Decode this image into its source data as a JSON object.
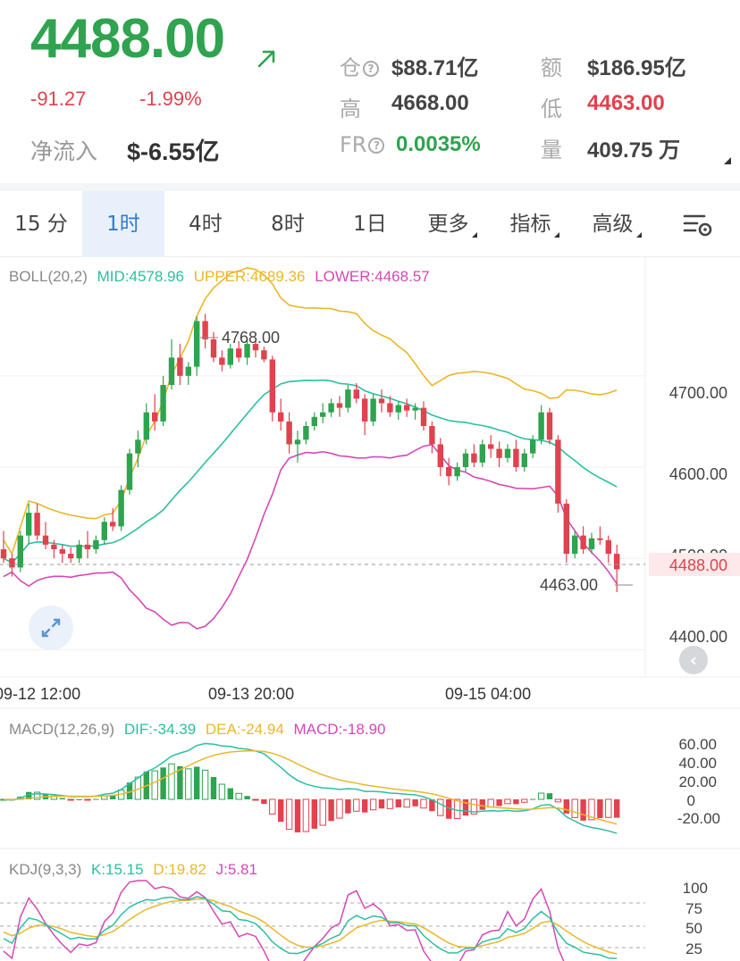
{
  "header": {
    "price": "4488.00",
    "change": "-91.27",
    "change_pct": "-1.99%",
    "inflow_label": "净流入",
    "inflow_value": "$-6.55亿",
    "stats": {
      "oi_label": "仓",
      "oi_value": "$88.71亿",
      "amount_label": "额",
      "amount_value": "$186.95亿",
      "high_label": "高",
      "high_value": "4668.00",
      "low_label": "低",
      "low_value": "4463.00",
      "fr_label": "FR",
      "fr_value": "0.0035%",
      "vol_label": "量",
      "vol_value": "409.75 万"
    }
  },
  "tabs": [
    "15 分",
    "1时",
    "4时",
    "8时",
    "1日",
    "更多",
    "指标",
    "高级"
  ],
  "active_tab": "1时",
  "colors": {
    "up": "#2fa34f",
    "down": "#e0424e",
    "mid": "#2bbfa0",
    "upper": "#eab72a",
    "lower": "#d548b6",
    "accent": "#2f7bd5"
  },
  "boll": {
    "label": "BOLL(20,2)",
    "mid": "MID:4578.96",
    "upper": "UPPER:4689.36",
    "lower": "LOWER:4468.57"
  },
  "price_axis": [
    "4700.00",
    "4600.00",
    "4500.00",
    "4400.00"
  ],
  "current_tag": "4488.00",
  "hi_marker": "4768.00",
  "lo_marker": "4463.00",
  "time_axis": [
    "09-12 12:00",
    "09-13 20:00",
    "09-15 04:00"
  ],
  "macd": {
    "label": "MACD(12,26,9)",
    "dif": "DIF:-34.39",
    "dea": "DEA:-24.94",
    "macd": "MACD:-18.90",
    "axis": [
      "60.00",
      "40.00",
      "20.00",
      "0",
      "-20.00"
    ]
  },
  "kdj": {
    "label": "KDJ(9,3,3)",
    "k": "K:15.15",
    "d": "D:19.82",
    "j": "J:5.81",
    "axis": [
      "100",
      "75",
      "50",
      "25"
    ]
  },
  "chart_data": {
    "type": "candlestick",
    "interval": "1h",
    "candles": [
      [
        4510,
        4530,
        4495,
        4500
      ],
      [
        4500,
        4505,
        4480,
        4490
      ],
      [
        4490,
        4530,
        4485,
        4525
      ],
      [
        4525,
        4560,
        4515,
        4550
      ],
      [
        4550,
        4560,
        4520,
        4525
      ],
      [
        4525,
        4540,
        4510,
        4515
      ],
      [
        4515,
        4520,
        4500,
        4510
      ],
      [
        4510,
        4515,
        4495,
        4505
      ],
      [
        4505,
        4512,
        4495,
        4500
      ],
      [
        4500,
        4520,
        4495,
        4515
      ],
      [
        4515,
        4530,
        4500,
        4510
      ],
      [
        4510,
        4525,
        4505,
        4520
      ],
      [
        4520,
        4545,
        4515,
        4540
      ],
      [
        4540,
        4555,
        4530,
        4535
      ],
      [
        4535,
        4580,
        4530,
        4575
      ],
      [
        4575,
        4620,
        4570,
        4615
      ],
      [
        4615,
        4640,
        4600,
        4630
      ],
      [
        4630,
        4670,
        4625,
        4660
      ],
      [
        4660,
        4680,
        4640,
        4650
      ],
      [
        4650,
        4700,
        4645,
        4690
      ],
      [
        4690,
        4740,
        4685,
        4720
      ],
      [
        4720,
        4735,
        4690,
        4700
      ],
      [
        4700,
        4715,
        4690,
        4710
      ],
      [
        4710,
        4765,
        4700,
        4760
      ],
      [
        4760,
        4768,
        4730,
        4740
      ],
      [
        4740,
        4748,
        4715,
        4720
      ],
      [
        4720,
        4728,
        4705,
        4712
      ],
      [
        4712,
        4735,
        4708,
        4730
      ],
      [
        4730,
        4738,
        4715,
        4720
      ],
      [
        4720,
        4740,
        4712,
        4735
      ],
      [
        4735,
        4740,
        4720,
        4728
      ],
      [
        4728,
        4732,
        4715,
        4718
      ],
      [
        4718,
        4722,
        4650,
        4660
      ],
      [
        4660,
        4675,
        4640,
        4650
      ],
      [
        4650,
        4660,
        4615,
        4625
      ],
      [
        4625,
        4640,
        4605,
        4630
      ],
      [
        4630,
        4650,
        4625,
        4645
      ],
      [
        4645,
        4660,
        4640,
        4655
      ],
      [
        4655,
        4670,
        4648,
        4660
      ],
      [
        4660,
        4675,
        4655,
        4670
      ],
      [
        4670,
        4678,
        4655,
        4665
      ],
      [
        4665,
        4690,
        4660,
        4685
      ],
      [
        4685,
        4692,
        4670,
        4675
      ],
      [
        4675,
        4680,
        4635,
        4650
      ],
      [
        4650,
        4680,
        4645,
        4675
      ],
      [
        4675,
        4685,
        4660,
        4670
      ],
      [
        4670,
        4678,
        4655,
        4660
      ],
      [
        4660,
        4672,
        4652,
        4668
      ],
      [
        4668,
        4675,
        4655,
        4662
      ],
      [
        4662,
        4670,
        4652,
        4665
      ],
      [
        4665,
        4672,
        4640,
        4645
      ],
      [
        4645,
        4650,
        4615,
        4625
      ],
      [
        4625,
        4632,
        4590,
        4600
      ],
      [
        4600,
        4610,
        4580,
        4590
      ],
      [
        4590,
        4605,
        4585,
        4600
      ],
      [
        4600,
        4620,
        4595,
        4615
      ],
      [
        4615,
        4625,
        4600,
        4605
      ],
      [
        4605,
        4630,
        4600,
        4625
      ],
      [
        4625,
        4635,
        4610,
        4620
      ],
      [
        4620,
        4628,
        4600,
        4610
      ],
      [
        4610,
        4625,
        4605,
        4620
      ],
      [
        4620,
        4630,
        4595,
        4600
      ],
      [
        4600,
        4620,
        4595,
        4615
      ],
      [
        4615,
        4635,
        4610,
        4630
      ],
      [
        4630,
        4668,
        4625,
        4660
      ],
      [
        4660,
        4665,
        4625,
        4630
      ],
      [
        4630,
        4635,
        4550,
        4560
      ],
      [
        4560,
        4565,
        4495,
        4505
      ],
      [
        4505,
        4530,
        4500,
        4525
      ],
      [
        4525,
        4535,
        4505,
        4510
      ],
      [
        4510,
        4528,
        4505,
        4522
      ],
      [
        4522,
        4535,
        4515,
        4520
      ],
      [
        4520,
        4525,
        4495,
        4505
      ],
      [
        4505,
        4515,
        4463,
        4488
      ]
    ],
    "ylim": [
      4370,
      4830
    ],
    "xlabels": [
      "09-12 12:00",
      "09-13 20:00",
      "09-15 04:00"
    ]
  }
}
